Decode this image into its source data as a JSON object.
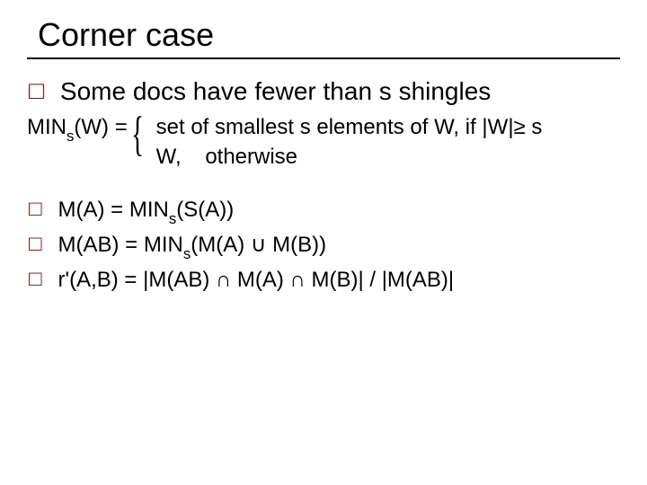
{
  "slide": {
    "title": "Corner case",
    "main_bullet": "Some docs have fewer than s shingles",
    "definition": {
      "lhs_pre": "MIN",
      "lhs_sub": "s",
      "lhs_post": "(W) = ",
      "case1": "set of smallest s elements of W, if |W|≥ s",
      "case2_a": "W,",
      "case2_b": "otherwise"
    },
    "formulas": [
      {
        "pre": "M(A) = MIN",
        "sub": "s",
        "mid": "(S(A))",
        "post": ""
      },
      {
        "pre": "M(AB) = MIN",
        "sub": "s",
        "mid": "(M(A) ",
        "sym": "∪",
        "post": " M(B))"
      },
      {
        "line": "r'(A,B) = |M(AB) ∩ M(A) ∩ M(B)| / |M(AB)|"
      }
    ]
  },
  "style": {
    "title_fontsize": 36,
    "body_fontsize_big": 28,
    "body_fontsize": 24,
    "bullet_color": "#a00000",
    "text_color": "#000000",
    "underline_color": "#000000",
    "background": "#ffffff"
  }
}
